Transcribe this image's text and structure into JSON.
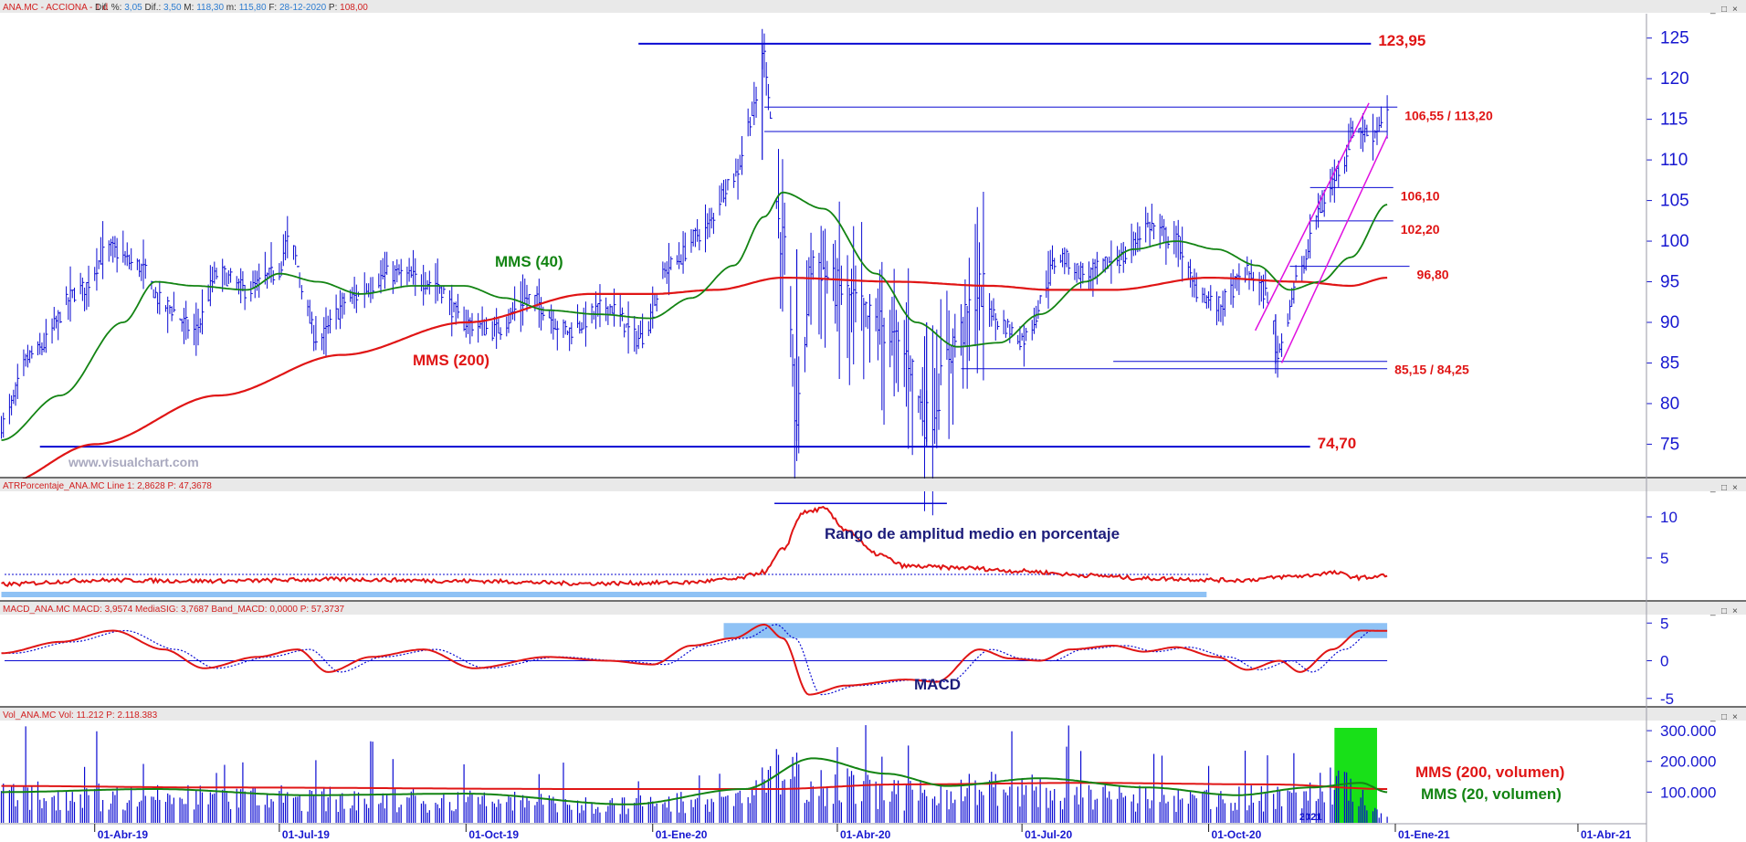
{
  "colors": {
    "price": "#0a0ad2",
    "mms40": "#138413",
    "mms200": "#e01515",
    "level_line": "#0a0ad2",
    "channel": "#e010e0",
    "label_red": "#e01515",
    "label_green": "#138413",
    "label_navy": "#1c1c7a",
    "highlight": "#8fc2f5",
    "volume_highlight": "#18e018",
    "axis": "#1717d0",
    "panel_header_bg": "#e9e9e9",
    "panel_title": "#d11f1f"
  },
  "panel_controls": [
    "_",
    "□",
    "×"
  ],
  "panels": {
    "price": {
      "title": "ANA.MC - ACCIONA - 1 d",
      "stats": [
        {
          "label": "Dif. %:",
          "value": "3,05"
        },
        {
          "label": "Dif.:",
          "value": "3,50"
        },
        {
          "label": "M:",
          "value": "118,30"
        },
        {
          "label": "m:",
          "value": "115,80"
        },
        {
          "label": "F:",
          "value": "28-12-2020"
        },
        {
          "label": "P:",
          "value": "108,00"
        }
      ],
      "watermark": "www.visualchart.com",
      "labels": {
        "mms40": "MMS (40)",
        "mms200": "MMS (200)"
      }
    },
    "atr": {
      "title": "ATRPorcentaje_ANA.MC Line 1: 2,8628 P: 47,3678",
      "annotation": "Rango de amplitud medio en porcentaje"
    },
    "macd": {
      "title": "MACD_ANA.MC MACD: 3,9574 MediaSIG: 3,7687 Band_MACD: 0,0000 P: 57,3737",
      "annotation": "MACD"
    },
    "volume": {
      "title": "Vol_ANA.MC Vol: 11.212 P: 2.118.383",
      "label_200": "MMS (200, volumen)",
      "label_20": "MMS (20, volumen)",
      "year_mark": "2021"
    }
  },
  "x_axis": {
    "ticks": [
      "01-Abr-19",
      "01-Jul-19",
      "01-Oct-19",
      "01-Ene-20",
      "01-Abr-20",
      "01-Jul-20",
      "01-Oct-20",
      "01-Ene-21",
      "01-Abr-21"
    ]
  },
  "chart_data": [
    {
      "type": "ohlc",
      "name": "price",
      "y_ticks": [
        75,
        80,
        85,
        90,
        95,
        100,
        105,
        110,
        115,
        120,
        125
      ],
      "ylim": [
        71,
        128
      ],
      "x_range": [
        "2019-02-14",
        "2021-05-05"
      ],
      "last_date": "2020-12-28",
      "anchors": [
        {
          "x": "2019-02-14",
          "y": 77.5
        },
        {
          "x": "2019-03-01",
          "y": 86
        },
        {
          "x": "2019-03-25",
          "y": 94
        },
        {
          "x": "2019-04-08",
          "y": 99
        },
        {
          "x": "2019-04-22",
          "y": 97
        },
        {
          "x": "2019-05-06",
          "y": 92
        },
        {
          "x": "2019-05-20",
          "y": 89
        },
        {
          "x": "2019-06-01",
          "y": 96
        },
        {
          "x": "2019-06-15",
          "y": 94
        },
        {
          "x": "2019-06-30",
          "y": 96
        },
        {
          "x": "2019-07-05",
          "y": 100
        },
        {
          "x": "2019-07-20",
          "y": 88
        },
        {
          "x": "2019-08-05",
          "y": 93
        },
        {
          "x": "2019-08-25",
          "y": 96
        },
        {
          "x": "2019-09-15",
          "y": 95
        },
        {
          "x": "2019-09-30",
          "y": 90
        },
        {
          "x": "2019-10-15",
          "y": 89
        },
        {
          "x": "2019-11-01",
          "y": 93
        },
        {
          "x": "2019-11-20",
          "y": 89
        },
        {
          "x": "2019-12-10",
          "y": 92
        },
        {
          "x": "2019-12-25",
          "y": 88
        },
        {
          "x": "2020-01-10",
          "y": 97
        },
        {
          "x": "2020-01-25",
          "y": 101
        },
        {
          "x": "2020-02-10",
          "y": 108
        },
        {
          "x": "2020-02-20",
          "y": 116
        },
        {
          "x": "2020-02-24",
          "y": 123.5
        },
        {
          "x": "2020-03-05",
          "y": 100
        },
        {
          "x": "2020-03-12",
          "y": 78
        },
        {
          "x": "2020-03-20",
          "y": 98
        },
        {
          "x": "2020-04-01",
          "y": 94
        },
        {
          "x": "2020-04-20",
          "y": 90
        },
        {
          "x": "2020-05-05",
          "y": 86
        },
        {
          "x": "2020-05-15",
          "y": 78
        },
        {
          "x": "2020-05-30",
          "y": 88
        },
        {
          "x": "2020-06-10",
          "y": 94
        },
        {
          "x": "2020-06-20",
          "y": 90
        },
        {
          "x": "2020-07-01",
          "y": 88
        },
        {
          "x": "2020-07-20",
          "y": 98
        },
        {
          "x": "2020-08-01",
          "y": 96
        },
        {
          "x": "2020-08-20",
          "y": 98
        },
        {
          "x": "2020-09-01",
          "y": 102
        },
        {
          "x": "2020-09-15",
          "y": 100
        },
        {
          "x": "2020-09-25",
          "y": 94
        },
        {
          "x": "2020-10-05",
          "y": 92
        },
        {
          "x": "2020-10-20",
          "y": 96
        },
        {
          "x": "2020-11-01",
          "y": 93
        },
        {
          "x": "2020-11-03",
          "y": 86
        },
        {
          "x": "2020-11-15",
          "y": 96
        },
        {
          "x": "2020-11-25",
          "y": 104
        },
        {
          "x": "2020-12-05",
          "y": 109
        },
        {
          "x": "2020-12-12",
          "y": 114
        },
        {
          "x": "2020-12-20",
          "y": 113
        },
        {
          "x": "2020-12-28",
          "y": 116
        }
      ],
      "mms40": [
        {
          "x": "2019-02-14",
          "y": 75.5
        },
        {
          "x": "2019-03-15",
          "y": 81
        },
        {
          "x": "2019-04-15",
          "y": 90
        },
        {
          "x": "2019-05-01",
          "y": 95
        },
        {
          "x": "2019-05-20",
          "y": 94.5
        },
        {
          "x": "2019-06-15",
          "y": 94
        },
        {
          "x": "2019-07-01",
          "y": 96
        },
        {
          "x": "2019-07-20",
          "y": 95
        },
        {
          "x": "2019-08-10",
          "y": 93.5
        },
        {
          "x": "2019-09-05",
          "y": 94.5
        },
        {
          "x": "2019-09-30",
          "y": 94.5
        },
        {
          "x": "2019-10-20",
          "y": 93
        },
        {
          "x": "2019-11-10",
          "y": 91.5
        },
        {
          "x": "2019-12-05",
          "y": 91
        },
        {
          "x": "2019-12-31",
          "y": 90.5
        },
        {
          "x": "2020-01-20",
          "y": 93
        },
        {
          "x": "2020-02-10",
          "y": 97
        },
        {
          "x": "2020-02-25",
          "y": 103
        },
        {
          "x": "2020-03-05",
          "y": 106
        },
        {
          "x": "2020-03-25",
          "y": 104
        },
        {
          "x": "2020-04-20",
          "y": 96
        },
        {
          "x": "2020-05-10",
          "y": 90
        },
        {
          "x": "2020-05-30",
          "y": 87
        },
        {
          "x": "2020-06-20",
          "y": 87.5
        },
        {
          "x": "2020-07-10",
          "y": 91
        },
        {
          "x": "2020-08-01",
          "y": 95
        },
        {
          "x": "2020-08-25",
          "y": 99
        },
        {
          "x": "2020-09-15",
          "y": 100
        },
        {
          "x": "2020-10-05",
          "y": 99
        },
        {
          "x": "2020-10-25",
          "y": 97
        },
        {
          "x": "2020-11-10",
          "y": 94
        },
        {
          "x": "2020-11-25",
          "y": 95
        },
        {
          "x": "2020-12-10",
          "y": 98
        },
        {
          "x": "2020-12-28",
          "y": 104.5
        }
      ],
      "mms200": [
        {
          "x": "2019-02-14",
          "y": 70
        },
        {
          "x": "2019-04-01",
          "y": 75
        },
        {
          "x": "2019-06-01",
          "y": 81
        },
        {
          "x": "2019-08-01",
          "y": 86
        },
        {
          "x": "2019-10-01",
          "y": 90
        },
        {
          "x": "2019-12-01",
          "y": 93.5
        },
        {
          "x": "2020-01-01",
          "y": 93.5
        },
        {
          "x": "2020-02-01",
          "y": 94
        },
        {
          "x": "2020-03-05",
          "y": 95.5
        },
        {
          "x": "2020-05-01",
          "y": 95
        },
        {
          "x": "2020-06-15",
          "y": 94.5
        },
        {
          "x": "2020-07-15",
          "y": 94
        },
        {
          "x": "2020-08-15",
          "y": 94
        },
        {
          "x": "2020-10-01",
          "y": 95.5
        },
        {
          "x": "2020-11-15",
          "y": 95
        },
        {
          "x": "2020-12-10",
          "y": 94.5
        },
        {
          "x": "2020-12-28",
          "y": 95.5
        }
      ],
      "levels": [
        {
          "label": "123,95",
          "y": 124.3,
          "from": "2019-12-25",
          "to": "2020-12-20",
          "big": true
        },
        {
          "label": "106,55 / 113,20",
          "y": 116.5,
          "from": "2020-02-25",
          "to": "2021-01-02"
        },
        {
          "label": "",
          "y": 113.5,
          "from": "2020-02-25",
          "to": "2020-12-28"
        },
        {
          "label": "106,10",
          "y": 106.6,
          "from": "2020-11-20",
          "to": "2020-12-31"
        },
        {
          "label": "102,20",
          "y": 102.5,
          "from": "2020-11-20",
          "to": "2020-12-31"
        },
        {
          "label": "96,80",
          "y": 96.9,
          "from": "2020-11-10",
          "to": "2021-01-08"
        },
        {
          "label": "85,15 / 84,25",
          "y": 85.2,
          "from": "2020-08-15",
          "to": "2020-12-28"
        },
        {
          "label": "",
          "y": 84.3,
          "from": "2020-06-01",
          "to": "2020-12-28"
        },
        {
          "label": "74,70",
          "y": 74.7,
          "from": "2019-03-05",
          "to": "2020-11-20",
          "big": true
        }
      ],
      "channel": [
        {
          "from": {
            "x": "2020-10-24",
            "y": 89
          },
          "to": {
            "x": "2020-12-19",
            "y": 117
          }
        },
        {
          "from": {
            "x": "2020-11-06",
            "y": 85
          },
          "to": {
            "x": "2020-12-28",
            "y": 113
          }
        }
      ]
    },
    {
      "type": "line",
      "name": "atr_percent",
      "y_ticks": [
        5,
        10
      ],
      "ylim": [
        0,
        13
      ],
      "line": [
        {
          "x": "2019-02-14",
          "y": 1.8
        },
        {
          "x": "2019-04-01",
          "y": 2.3
        },
        {
          "x": "2019-06-01",
          "y": 2.2
        },
        {
          "x": "2019-08-01",
          "y": 2.4
        },
        {
          "x": "2019-10-01",
          "y": 2.2
        },
        {
          "x": "2019-12-01",
          "y": 1.9
        },
        {
          "x": "2020-01-15",
          "y": 2.0
        },
        {
          "x": "2020-02-10",
          "y": 2.4
        },
        {
          "x": "2020-02-25",
          "y": 3.3
        },
        {
          "x": "2020-03-05",
          "y": 6
        },
        {
          "x": "2020-03-15",
          "y": 10.5
        },
        {
          "x": "2020-03-25",
          "y": 11
        },
        {
          "x": "2020-04-05",
          "y": 8.5
        },
        {
          "x": "2020-04-20",
          "y": 5.5
        },
        {
          "x": "2020-05-05",
          "y": 4.0
        },
        {
          "x": "2020-06-01",
          "y": 3.8
        },
        {
          "x": "2020-07-01",
          "y": 3.4
        },
        {
          "x": "2020-08-01",
          "y": 2.9
        },
        {
          "x": "2020-09-01",
          "y": 2.5
        },
        {
          "x": "2020-10-15",
          "y": 2.3
        },
        {
          "x": "2020-11-15",
          "y": 2.8
        },
        {
          "x": "2020-12-01",
          "y": 3.2
        },
        {
          "x": "2020-12-15",
          "y": 2.6
        },
        {
          "x": "2020-12-28",
          "y": 2.86
        }
      ],
      "dotted_level": 3.0,
      "peak_marker": {
        "y": 11.3,
        "from": "2020-03-01",
        "to": "2020-05-25"
      },
      "band": {
        "from": "2019-02-14",
        "to": "2020-09-30"
      }
    },
    {
      "type": "line",
      "name": "macd",
      "y_ticks": [
        -5,
        0,
        5
      ],
      "ylim": [
        -6,
        6
      ],
      "macd": [
        {
          "x": "2019-02-14",
          "y": 1
        },
        {
          "x": "2019-03-15",
          "y": 2.5
        },
        {
          "x": "2019-04-10",
          "y": 4
        },
        {
          "x": "2019-05-05",
          "y": 1.5
        },
        {
          "x": "2019-05-25",
          "y": -1
        },
        {
          "x": "2019-06-20",
          "y": 0.5
        },
        {
          "x": "2019-07-10",
          "y": 1.5
        },
        {
          "x": "2019-07-25",
          "y": -1.5
        },
        {
          "x": "2019-08-15",
          "y": 0.5
        },
        {
          "x": "2019-09-10",
          "y": 1.5
        },
        {
          "x": "2019-10-05",
          "y": -1
        },
        {
          "x": "2019-11-10",
          "y": 0.5
        },
        {
          "x": "2019-12-10",
          "y": 0.0
        },
        {
          "x": "2020-01-01",
          "y": -0.5
        },
        {
          "x": "2020-01-20",
          "y": 2
        },
        {
          "x": "2020-02-10",
          "y": 3
        },
        {
          "x": "2020-02-25",
          "y": 4.8
        },
        {
          "x": "2020-03-05",
          "y": 3
        },
        {
          "x": "2020-03-18",
          "y": -4.5
        },
        {
          "x": "2020-04-05",
          "y": -3.3
        },
        {
          "x": "2020-05-05",
          "y": -2.5
        },
        {
          "x": "2020-05-20",
          "y": -2.8
        },
        {
          "x": "2020-06-10",
          "y": 1.5
        },
        {
          "x": "2020-06-25",
          "y": 0.3
        },
        {
          "x": "2020-07-10",
          "y": 0
        },
        {
          "x": "2020-07-25",
          "y": 1.5
        },
        {
          "x": "2020-08-15",
          "y": 2
        },
        {
          "x": "2020-08-30",
          "y": 1.2
        },
        {
          "x": "2020-09-15",
          "y": 1.8
        },
        {
          "x": "2020-10-05",
          "y": 0.5
        },
        {
          "x": "2020-10-20",
          "y": -1.2
        },
        {
          "x": "2020-11-05",
          "y": 0
        },
        {
          "x": "2020-11-15",
          "y": -1.5
        },
        {
          "x": "2020-12-01",
          "y": 1.5
        },
        {
          "x": "2020-12-15",
          "y": 4
        },
        {
          "x": "2020-12-28",
          "y": 3.96
        }
      ],
      "signal_offset_days": 6,
      "highlight": {
        "from": "2020-02-05",
        "to": "2020-12-28",
        "ylow": 3,
        "yhigh": 5
      }
    },
    {
      "type": "bar",
      "name": "volume",
      "y_ticks": [
        100000,
        200000,
        300000
      ],
      "y_tick_labels": [
        "100.000",
        "200.000",
        "300.000"
      ],
      "ylim": [
        0,
        330000
      ],
      "base_levels": [
        {
          "x": "2019-02-14",
          "y": 110000
        },
        {
          "x": "2019-06-01",
          "y": 100000
        },
        {
          "x": "2019-10-01",
          "y": 90000
        },
        {
          "x": "2019-12-15",
          "y": 70000
        },
        {
          "x": "2020-02-10",
          "y": 100000
        },
        {
          "x": "2020-03-05",
          "y": 200000
        },
        {
          "x": "2020-04-01",
          "y": 150000
        },
        {
          "x": "2020-05-05",
          "y": 110000
        },
        {
          "x": "2020-06-15",
          "y": 140000
        },
        {
          "x": "2020-08-01",
          "y": 110000
        },
        {
          "x": "2020-09-15",
          "y": 90000
        },
        {
          "x": "2020-11-01",
          "y": 100000
        },
        {
          "x": "2020-12-05",
          "y": 150000
        },
        {
          "x": "2020-12-28",
          "y": 20000
        }
      ],
      "mms200": [
        {
          "x": "2019-02-14",
          "y": 120000
        },
        {
          "x": "2019-06-01",
          "y": 115000
        },
        {
          "x": "2019-12-01",
          "y": 110000
        },
        {
          "x": "2020-03-01",
          "y": 110000
        },
        {
          "x": "2020-05-01",
          "y": 125000
        },
        {
          "x": "2020-08-01",
          "y": 130000
        },
        {
          "x": "2020-11-01",
          "y": 125000
        },
        {
          "x": "2020-12-28",
          "y": 110000
        }
      ],
      "mms20": [
        {
          "x": "2019-02-14",
          "y": 100000
        },
        {
          "x": "2019-05-01",
          "y": 110000
        },
        {
          "x": "2019-07-15",
          "y": 90000
        },
        {
          "x": "2019-10-01",
          "y": 95000
        },
        {
          "x": "2019-12-20",
          "y": 60000
        },
        {
          "x": "2020-02-15",
          "y": 110000
        },
        {
          "x": "2020-03-20",
          "y": 210000
        },
        {
          "x": "2020-04-25",
          "y": 160000
        },
        {
          "x": "2020-05-25",
          "y": 120000
        },
        {
          "x": "2020-07-10",
          "y": 145000
        },
        {
          "x": "2020-09-01",
          "y": 115000
        },
        {
          "x": "2020-10-15",
          "y": 90000
        },
        {
          "x": "2020-11-20",
          "y": 115000
        },
        {
          "x": "2020-12-15",
          "y": 130000
        },
        {
          "x": "2020-12-28",
          "y": 100000
        }
      ],
      "highlight": {
        "from": "2020-12-02",
        "to": "2020-12-23"
      }
    }
  ]
}
